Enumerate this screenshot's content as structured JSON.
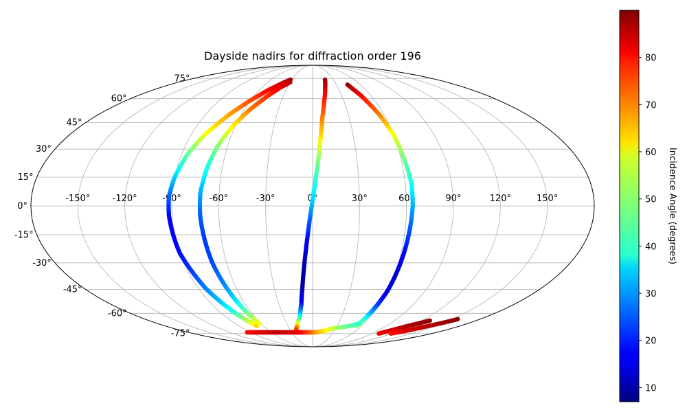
{
  "chart_data": {
    "type": "scatter",
    "projection": "mollweide",
    "title": "Dayside nadirs for diffraction order 196",
    "xlabel": "",
    "ylabel": "",
    "grid": true,
    "lon_ticks": [
      -150,
      -120,
      -90,
      -60,
      -30,
      0,
      30,
      60,
      90,
      120,
      150
    ],
    "lon_tick_labels": [
      "-150°",
      "-120°",
      "-90°",
      "-60°",
      "-30°",
      "0°",
      "30°",
      "60°",
      "90°",
      "120°",
      "150°"
    ],
    "lat_ticks": [
      -75,
      -60,
      -45,
      -30,
      -15,
      0,
      15,
      30,
      45,
      60,
      75
    ],
    "lat_tick_labels": [
      "-75°",
      "-60°",
      "-45°",
      "-30°",
      "-15°",
      "0°",
      "15°",
      "30°",
      "45°",
      "60°",
      "75°"
    ],
    "colorbar": {
      "label": "Incidence Angle (degrees)",
      "colormap": "jet",
      "range": [
        7,
        90
      ],
      "ticks": [
        10,
        20,
        30,
        40,
        50,
        60,
        70,
        80
      ],
      "tick_labels": [
        "10",
        "20",
        "30",
        "40",
        "50",
        "60",
        "70",
        "80"
      ]
    },
    "series": [
      {
        "lon": [
          -32,
          -40,
          -50,
          -60,
          -70,
          -80,
          -86,
          -90,
          -92,
          -92,
          -91,
          -90,
          -87,
          -84,
          -80,
          -76,
          -72,
          -68
        ],
        "lat": [
          74,
          71,
          66,
          59,
          50,
          38,
          27,
          15,
          5,
          -5,
          -15,
          -25,
          -35,
          -45,
          -53,
          -60,
          -65,
          -69
        ],
        "incidence": [
          88,
          84,
          80,
          74,
          67,
          58,
          46,
          35,
          26,
          18,
          17,
          18,
          22,
          28,
          34,
          42,
          52,
          62
        ]
      },
      {
        "lon": [
          -30,
          -38,
          -46,
          -55,
          -62,
          -67,
          -70,
          -72,
          -72,
          -71,
          -70,
          -68,
          -66,
          -64,
          -62
        ],
        "lat": [
          72,
          68,
          62,
          53,
          43,
          32,
          20,
          7,
          -5,
          -18,
          -30,
          -42,
          -52,
          -60,
          -67
        ],
        "incidence": [
          86,
          82,
          77,
          70,
          60,
          50,
          40,
          32,
          25,
          22,
          23,
          28,
          36,
          47,
          58
        ]
      },
      {
        "lon": [
          18,
          15,
          11,
          8,
          6,
          4,
          2,
          0,
          -2,
          -4,
          -6,
          -8,
          -10,
          -13,
          -18,
          -22
        ],
        "lat": [
          74,
          68,
          58,
          48,
          37,
          25,
          14,
          3,
          -8,
          -20,
          -32,
          -44,
          -54,
          -62,
          -68,
          -72
        ],
        "incidence": [
          88,
          84,
          77,
          70,
          62,
          50,
          42,
          35,
          25,
          16,
          10,
          10,
          18,
          36,
          58,
          75
        ]
      },
      {
        "lon": [
          44,
          50,
          56,
          60,
          62,
          64,
          64,
          63,
          62,
          61,
          60,
          58,
          56,
          54
        ],
        "lat": [
          70,
          62,
          50,
          38,
          25,
          12,
          0,
          -12,
          -24,
          -35,
          -46,
          -55,
          -62,
          -69
        ],
        "incidence": [
          88,
          80,
          70,
          58,
          48,
          40,
          32,
          25,
          18,
          14,
          14,
          22,
          35,
          50
        ]
      },
      {
        "lon": [
          -95,
          -85,
          -75,
          -65,
          -55,
          -45,
          -35,
          -25,
          -15,
          -5,
          5,
          15,
          25,
          35,
          45,
          55
        ],
        "lat": [
          -74,
          -74,
          -74,
          -74,
          -74,
          -74,
          -74,
          -74,
          -74,
          -74,
          -74,
          -73,
          -71,
          -70,
          -69,
          -67
        ],
        "incidence": [
          78,
          80,
          82,
          83,
          84,
          84,
          83,
          82,
          80,
          74,
          68,
          62,
          56,
          50,
          46,
          42
        ]
      },
      {
        "lon": [
          100,
          108,
          116,
          123,
          129
        ],
        "lat": [
          -75,
          -72,
          -69,
          -67,
          -65
        ],
        "incidence": [
          80,
          83,
          86,
          88,
          89
        ]
      },
      {
        "lon": [
          118,
          128,
          138,
          148,
          156
        ],
        "lat": [
          -75,
          -73,
          -70,
          -67,
          -64
        ],
        "incidence": [
          78,
          82,
          85,
          87,
          89
        ]
      }
    ]
  }
}
